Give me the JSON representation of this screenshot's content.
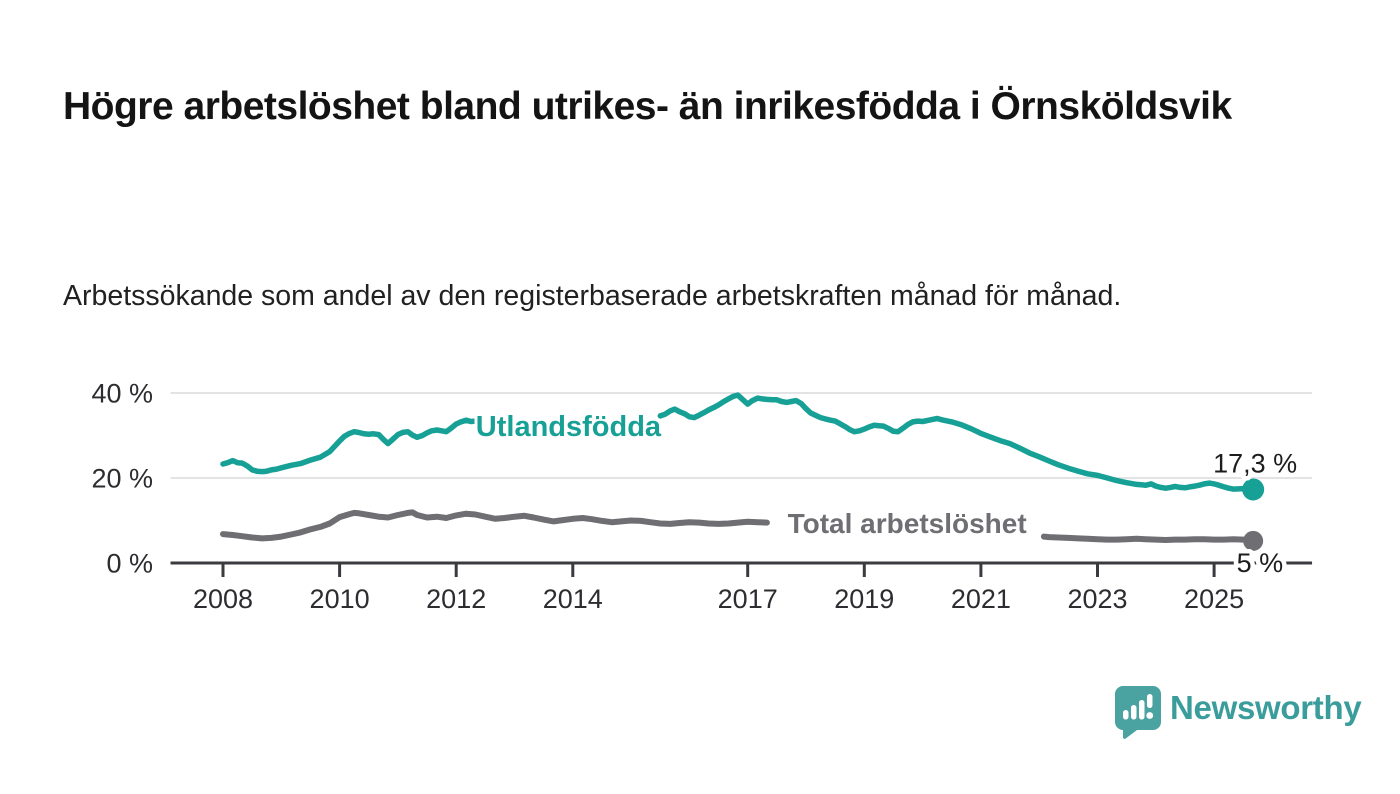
{
  "page": {
    "title": "Högre arbetslöshet bland utrikes- än inrikesfödda i Örnsköldsvik",
    "subtitle": "Arbetssökande som andel av den registerbaserade arbetskraften månad för månad."
  },
  "branding": {
    "name": "Newsworthy",
    "icon": "bar-chart-speech-bubble-icon",
    "icon_color": "#4aa2a1",
    "text_color": "#3b9d9b"
  },
  "colors": {
    "foreign_born_line": "#17a095",
    "total_line": "#6e6e73",
    "axis": "#3b3b3f",
    "gridline": "#e3e3e5",
    "tick_text": "#2d2d31",
    "value_text": "#1d1d1f",
    "background": "#ffffff"
  },
  "chart_data": {
    "type": "line",
    "title": "Högre arbetslöshet bland utrikes- än inrikesfödda i Örnsköldsvik",
    "subtitle": "Arbetssökande som andel av den registerbaserade arbetskraften månad för månad.",
    "grid": "horizontal",
    "legend_position": "inline-on-line",
    "x_axis": {
      "ticks": [
        2008,
        2010,
        2012,
        2014,
        2017,
        2019,
        2021,
        2023,
        2025
      ],
      "range": [
        2007.1,
        2026.68
      ]
    },
    "y_axis": {
      "unit": "%",
      "tick_values": [
        40,
        20,
        0
      ],
      "tick_labels": [
        "40 %",
        "20 %",
        "0 %"
      ],
      "range": [
        0,
        44
      ]
    },
    "series": [
      {
        "name": "Utlandsfödda",
        "color": "#17a095",
        "line_width": 5.5,
        "dot_radius": 11,
        "end_label": "17,3 %",
        "end_value": 17.3,
        "label_gap_years": [
          2012.35,
          2015.5
        ],
        "label_value": 32.2,
        "label_font": 29,
        "end_label_dx": 44,
        "end_label_dy": -17,
        "points": [
          [
            2008.0,
            23.3
          ],
          [
            2008.08,
            23.6
          ],
          [
            2008.17,
            24.1
          ],
          [
            2008.25,
            23.6
          ],
          [
            2008.33,
            23.5
          ],
          [
            2008.42,
            22.8
          ],
          [
            2008.5,
            21.9
          ],
          [
            2008.58,
            21.6
          ],
          [
            2008.67,
            21.5
          ],
          [
            2008.75,
            21.6
          ],
          [
            2008.83,
            21.9
          ],
          [
            2008.92,
            22.1
          ],
          [
            2009.0,
            22.4
          ],
          [
            2009.17,
            23.0
          ],
          [
            2009.33,
            23.4
          ],
          [
            2009.5,
            24.2
          ],
          [
            2009.67,
            24.9
          ],
          [
            2009.83,
            26.2
          ],
          [
            2010.0,
            28.7
          ],
          [
            2010.08,
            29.8
          ],
          [
            2010.17,
            30.5
          ],
          [
            2010.25,
            30.9
          ],
          [
            2010.33,
            30.7
          ],
          [
            2010.42,
            30.4
          ],
          [
            2010.5,
            30.3
          ],
          [
            2010.58,
            30.4
          ],
          [
            2010.67,
            30.2
          ],
          [
            2010.75,
            29.1
          ],
          [
            2010.83,
            28.1
          ],
          [
            2010.92,
            29.2
          ],
          [
            2011.0,
            30.2
          ],
          [
            2011.08,
            30.7
          ],
          [
            2011.17,
            30.9
          ],
          [
            2011.25,
            30.1
          ],
          [
            2011.33,
            29.6
          ],
          [
            2011.42,
            30.0
          ],
          [
            2011.5,
            30.6
          ],
          [
            2011.58,
            31.1
          ],
          [
            2011.67,
            31.3
          ],
          [
            2011.75,
            31.1
          ],
          [
            2011.83,
            30.9
          ],
          [
            2011.92,
            31.8
          ],
          [
            2012.0,
            32.7
          ],
          [
            2012.08,
            33.2
          ],
          [
            2012.17,
            33.6
          ],
          [
            2012.25,
            33.3
          ],
          [
            2012.33,
            33.4
          ],
          [
            2015.5,
            34.6
          ],
          [
            2015.58,
            35.0
          ],
          [
            2015.67,
            35.8
          ],
          [
            2015.75,
            36.2
          ],
          [
            2015.83,
            35.6
          ],
          [
            2015.92,
            35.1
          ],
          [
            2016.0,
            34.4
          ],
          [
            2016.08,
            34.2
          ],
          [
            2016.17,
            34.8
          ],
          [
            2016.25,
            35.4
          ],
          [
            2016.33,
            36.0
          ],
          [
            2016.42,
            36.6
          ],
          [
            2016.5,
            37.2
          ],
          [
            2016.58,
            37.9
          ],
          [
            2016.67,
            38.6
          ],
          [
            2016.75,
            39.2
          ],
          [
            2016.83,
            39.5
          ],
          [
            2016.92,
            38.4
          ],
          [
            2017.0,
            37.4
          ],
          [
            2017.08,
            38.2
          ],
          [
            2017.17,
            38.8
          ],
          [
            2017.25,
            38.6
          ],
          [
            2017.33,
            38.5
          ],
          [
            2017.42,
            38.4
          ],
          [
            2017.5,
            38.4
          ],
          [
            2017.58,
            38.0
          ],
          [
            2017.67,
            37.8
          ],
          [
            2017.75,
            38.0
          ],
          [
            2017.83,
            38.2
          ],
          [
            2017.92,
            37.5
          ],
          [
            2018.0,
            36.3
          ],
          [
            2018.08,
            35.3
          ],
          [
            2018.17,
            34.7
          ],
          [
            2018.25,
            34.2
          ],
          [
            2018.33,
            33.9
          ],
          [
            2018.42,
            33.6
          ],
          [
            2018.5,
            33.4
          ],
          [
            2018.58,
            32.8
          ],
          [
            2018.67,
            32.1
          ],
          [
            2018.75,
            31.4
          ],
          [
            2018.83,
            30.9
          ],
          [
            2018.92,
            31.1
          ],
          [
            2019.0,
            31.5
          ],
          [
            2019.08,
            32.0
          ],
          [
            2019.17,
            32.4
          ],
          [
            2019.25,
            32.3
          ],
          [
            2019.33,
            32.2
          ],
          [
            2019.42,
            31.6
          ],
          [
            2019.5,
            31.0
          ],
          [
            2019.58,
            30.9
          ],
          [
            2019.67,
            31.8
          ],
          [
            2019.75,
            32.6
          ],
          [
            2019.83,
            33.2
          ],
          [
            2019.92,
            33.4
          ],
          [
            2020.0,
            33.3
          ],
          [
            2020.17,
            33.8
          ],
          [
            2020.25,
            34.0
          ],
          [
            2020.33,
            33.7
          ],
          [
            2020.5,
            33.2
          ],
          [
            2020.67,
            32.5
          ],
          [
            2020.83,
            31.6
          ],
          [
            2021.0,
            30.5
          ],
          [
            2021.17,
            29.6
          ],
          [
            2021.33,
            28.8
          ],
          [
            2021.5,
            28.1
          ],
          [
            2021.67,
            27.0
          ],
          [
            2021.83,
            25.9
          ],
          [
            2022.0,
            25.0
          ],
          [
            2022.17,
            24.0
          ],
          [
            2022.33,
            23.1
          ],
          [
            2022.5,
            22.3
          ],
          [
            2022.67,
            21.6
          ],
          [
            2022.83,
            21.0
          ],
          [
            2023.0,
            20.6
          ],
          [
            2023.17,
            20.0
          ],
          [
            2023.33,
            19.4
          ],
          [
            2023.5,
            18.9
          ],
          [
            2023.67,
            18.5
          ],
          [
            2023.83,
            18.3
          ],
          [
            2023.92,
            18.6
          ],
          [
            2024.0,
            18.1
          ],
          [
            2024.08,
            17.8
          ],
          [
            2024.17,
            17.6
          ],
          [
            2024.25,
            17.8
          ],
          [
            2024.33,
            18.0
          ],
          [
            2024.42,
            17.8
          ],
          [
            2024.5,
            17.7
          ],
          [
            2024.58,
            17.9
          ],
          [
            2024.67,
            18.1
          ],
          [
            2024.75,
            18.3
          ],
          [
            2024.83,
            18.6
          ],
          [
            2024.92,
            18.8
          ],
          [
            2025.0,
            18.6
          ],
          [
            2025.08,
            18.3
          ],
          [
            2025.17,
            17.9
          ],
          [
            2025.25,
            17.6
          ],
          [
            2025.33,
            17.4
          ],
          [
            2025.5,
            17.5
          ],
          [
            2025.67,
            17.3
          ]
        ]
      },
      {
        "name": "Total arbetslöshet",
        "color": "#6e6e73",
        "line_width": 6,
        "dot_radius": 10,
        "end_label": "5 %",
        "end_value": 5.2,
        "label_gap_years": [
          2017.42,
          2022.05
        ],
        "label_value": 9.4,
        "label_font": 28,
        "end_label_dx": 30,
        "end_label_dy": 31,
        "points": [
          [
            2008.0,
            6.8
          ],
          [
            2008.17,
            6.6
          ],
          [
            2008.33,
            6.3
          ],
          [
            2008.5,
            6.0
          ],
          [
            2008.67,
            5.8
          ],
          [
            2008.83,
            5.9
          ],
          [
            2009.0,
            6.2
          ],
          [
            2009.17,
            6.7
          ],
          [
            2009.33,
            7.2
          ],
          [
            2009.5,
            7.9
          ],
          [
            2009.67,
            8.5
          ],
          [
            2009.83,
            9.3
          ],
          [
            2010.0,
            10.8
          ],
          [
            2010.17,
            11.5
          ],
          [
            2010.25,
            11.8
          ],
          [
            2010.33,
            11.7
          ],
          [
            2010.5,
            11.3
          ],
          [
            2010.67,
            10.9
          ],
          [
            2010.83,
            10.7
          ],
          [
            2011.0,
            11.3
          ],
          [
            2011.17,
            11.8
          ],
          [
            2011.25,
            11.9
          ],
          [
            2011.33,
            11.3
          ],
          [
            2011.5,
            10.7
          ],
          [
            2011.67,
            10.9
          ],
          [
            2011.83,
            10.6
          ],
          [
            2012.0,
            11.2
          ],
          [
            2012.17,
            11.6
          ],
          [
            2012.33,
            11.4
          ],
          [
            2012.5,
            10.9
          ],
          [
            2012.67,
            10.4
          ],
          [
            2012.83,
            10.6
          ],
          [
            2013.0,
            10.9
          ],
          [
            2013.17,
            11.1
          ],
          [
            2013.33,
            10.7
          ],
          [
            2013.5,
            10.2
          ],
          [
            2013.67,
            9.8
          ],
          [
            2013.83,
            10.1
          ],
          [
            2014.0,
            10.4
          ],
          [
            2014.17,
            10.6
          ],
          [
            2014.33,
            10.3
          ],
          [
            2014.5,
            9.9
          ],
          [
            2014.67,
            9.6
          ],
          [
            2014.83,
            9.8
          ],
          [
            2015.0,
            10.0
          ],
          [
            2015.17,
            9.9
          ],
          [
            2015.33,
            9.6
          ],
          [
            2015.5,
            9.3
          ],
          [
            2015.67,
            9.2
          ],
          [
            2015.83,
            9.4
          ],
          [
            2016.0,
            9.6
          ],
          [
            2016.17,
            9.5
          ],
          [
            2016.33,
            9.3
          ],
          [
            2016.5,
            9.2
          ],
          [
            2016.67,
            9.3
          ],
          [
            2016.83,
            9.5
          ],
          [
            2017.0,
            9.7
          ],
          [
            2017.17,
            9.6
          ],
          [
            2017.33,
            9.5
          ],
          [
            2022.08,
            6.2
          ],
          [
            2022.17,
            6.1
          ],
          [
            2022.33,
            6.0
          ],
          [
            2022.5,
            5.9
          ],
          [
            2022.67,
            5.8
          ],
          [
            2022.83,
            5.7
          ],
          [
            2023.0,
            5.6
          ],
          [
            2023.17,
            5.5
          ],
          [
            2023.33,
            5.5
          ],
          [
            2023.5,
            5.6
          ],
          [
            2023.67,
            5.7
          ],
          [
            2023.83,
            5.6
          ],
          [
            2024.0,
            5.5
          ],
          [
            2024.17,
            5.4
          ],
          [
            2024.33,
            5.5
          ],
          [
            2024.5,
            5.5
          ],
          [
            2024.67,
            5.6
          ],
          [
            2024.83,
            5.6
          ],
          [
            2025.0,
            5.5
          ],
          [
            2025.17,
            5.5
          ],
          [
            2025.33,
            5.6
          ],
          [
            2025.5,
            5.5
          ],
          [
            2025.67,
            5.2
          ]
        ]
      }
    ]
  }
}
